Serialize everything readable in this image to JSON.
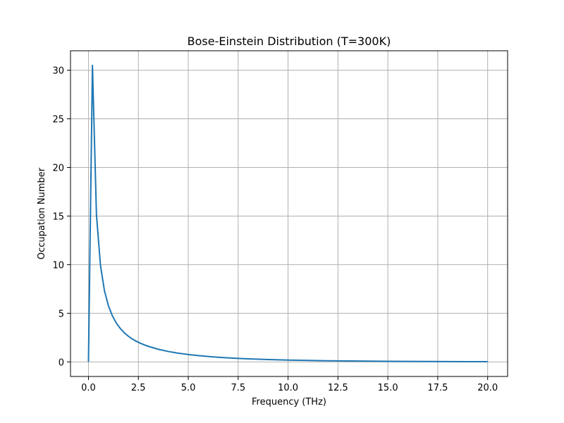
{
  "chart_data": {
    "type": "line",
    "title": "Bose-Einstein Distribution (T=300K)",
    "xlabel": "Frequency (THz)",
    "ylabel": "Occupation Number",
    "xlim": [
      -0.9,
      21.0
    ],
    "ylim": [
      -1.5,
      32.0
    ],
    "xticks": [
      0.0,
      2.5,
      5.0,
      7.5,
      10.0,
      12.5,
      15.0,
      17.5,
      20.0
    ],
    "xtick_labels": [
      "0.0",
      "2.5",
      "5.0",
      "7.5",
      "10.0",
      "12.5",
      "15.0",
      "17.5",
      "20.0"
    ],
    "yticks": [
      0,
      5,
      10,
      15,
      20,
      25,
      30
    ],
    "ytick_labels": [
      "0",
      "5",
      "10",
      "15",
      "20",
      "25",
      "30"
    ],
    "grid": true,
    "series": [
      {
        "color": "#1f77b4",
        "x": [
          0.0,
          0.2,
          0.4,
          0.6,
          0.8,
          1.0,
          1.2,
          1.4,
          1.6,
          1.8,
          2.0,
          2.2,
          2.4,
          2.6,
          2.8,
          3.0,
          3.5,
          4.0,
          4.5,
          5.0,
          5.5,
          6.0,
          6.5,
          7.0,
          7.5,
          8.0,
          8.5,
          9.0,
          9.5,
          10.0,
          11.0,
          12.0,
          13.0,
          14.0,
          15.0,
          16.0,
          17.0,
          18.0,
          19.0,
          20.0
        ],
        "y": [
          0.0,
          30.5,
          15.15,
          9.95,
          7.33,
          5.77,
          4.73,
          3.98,
          3.42,
          2.99,
          2.64,
          2.35,
          2.12,
          1.92,
          1.75,
          1.6,
          1.3,
          1.07,
          0.896,
          0.759,
          0.647,
          0.555,
          0.479,
          0.416,
          0.362,
          0.316,
          0.277,
          0.243,
          0.214,
          0.189,
          0.148,
          0.117,
          0.093,
          0.074,
          0.06,
          0.048,
          0.039,
          0.032,
          0.026,
          0.021
        ]
      }
    ]
  }
}
